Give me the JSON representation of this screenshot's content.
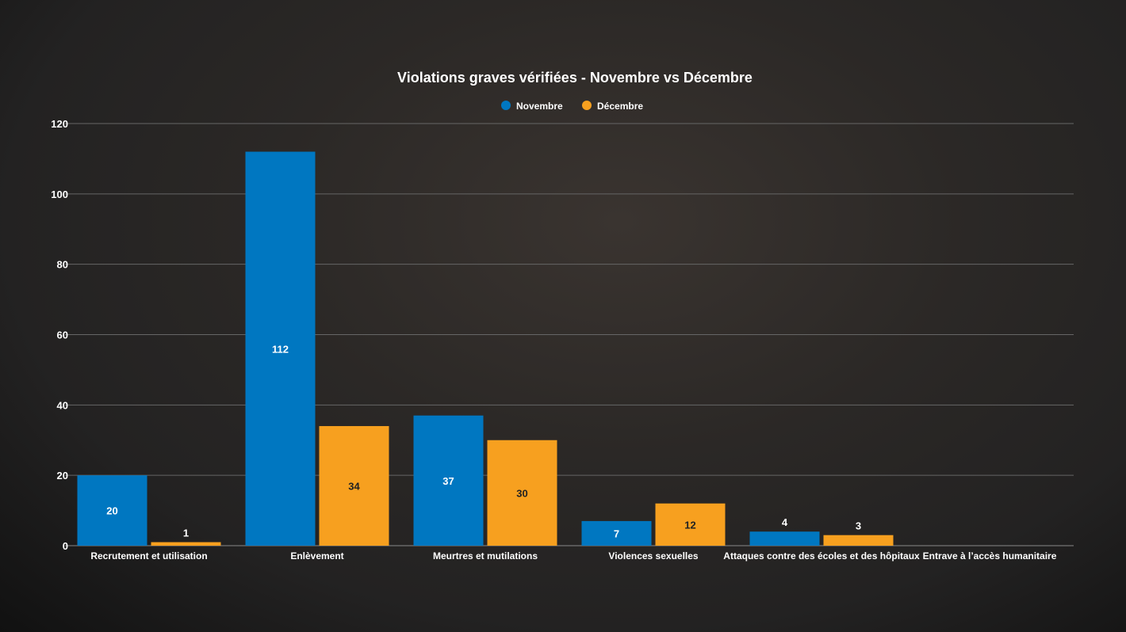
{
  "chart_data": {
    "type": "bar",
    "title": "Violations graves vérifiées - Novembre vs Décembre",
    "categories": [
      "Recrutement et utilisation",
      "Enlèvement",
      "Meurtres et mutilations",
      "Violences sexuelles",
      "Attaques contre des écoles et des hôpitaux",
      "Entrave à l’accès humanitaire"
    ],
    "series": [
      {
        "name": "Novembre",
        "color": "#0077c1",
        "values": [
          20,
          112,
          37,
          7,
          4,
          null
        ]
      },
      {
        "name": "Décembre",
        "color": "#f7a01f",
        "values": [
          1,
          34,
          30,
          12,
          3,
          null
        ]
      }
    ],
    "ylim": [
      0,
      120
    ],
    "yticks": [
      0,
      20,
      40,
      60,
      80,
      100,
      120
    ],
    "grid": true,
    "legend": "top-center",
    "xlabel": "",
    "ylabel": ""
  }
}
